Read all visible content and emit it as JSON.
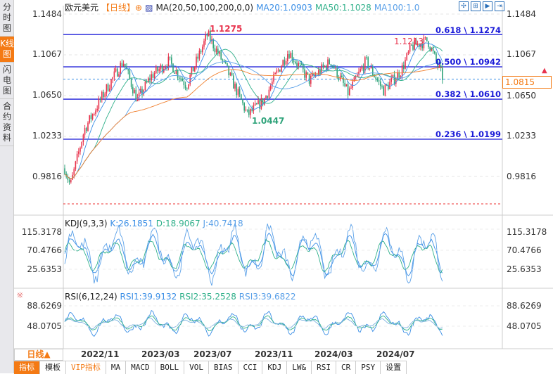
{
  "sidebar": {
    "tabs": [
      {
        "label": "分时图"
      },
      {
        "label": "K线图",
        "active": true
      },
      {
        "label": "闪电图"
      },
      {
        "label": "合约资料"
      }
    ]
  },
  "header": {
    "symbol": "欧元美元",
    "period": "【日线】",
    "ma_label": "MA(20,50,100,200,0,0)",
    "ma20": "MA20:1.0903",
    "ma50": "MA50:1.1028",
    "ma100": "MA100:1.0"
  },
  "toolbar": {
    "icons": [
      "crosshair-icon",
      "zoom-range-icon",
      "play-forward-icon",
      "exit-right-icon"
    ]
  },
  "price_axis": {
    "right": [
      "1.1484",
      "1.1067",
      "1.0650",
      "1.0233",
      "0.9816"
    ],
    "left": [
      "1.1484",
      "1.1067",
      "1.0650",
      "1.0233",
      "0.9816"
    ],
    "current": "1.0815"
  },
  "annotations": {
    "high1": "1.1275",
    "low1": "1.0447",
    "high2": "1.1213"
  },
  "fibonacci": [
    {
      "label": "0.618 \\ 1.1274",
      "level": 1.1274
    },
    {
      "label": "0.500 \\ 1.0942",
      "level": 1.0942
    },
    {
      "label": "0.382 \\ 1.0610",
      "level": 1.061
    },
    {
      "label": "0.236 \\ 1.0199",
      "level": 1.0199
    }
  ],
  "kdj": {
    "title": "KDJ(9,3,3)",
    "k": "K:26.1851",
    "d": "D:18.9067",
    "j": "J:40.7418",
    "ticks": [
      "115.3178",
      "70.4766",
      "25.6353"
    ]
  },
  "rsi": {
    "title": "RSI(6,12,24)",
    "rsi1": "RSI1:39.9132",
    "rsi2": "RSI2:35.2528",
    "rsi3": "RSI3:39.6822",
    "ticks": [
      "88.6269",
      "48.0705"
    ]
  },
  "xaxis": {
    "period_button": "日线▲",
    "ticks": [
      "2022/11",
      "2023/03",
      "2023/07",
      "2023/11",
      "2024/03",
      "2024/07"
    ]
  },
  "bottom_tabs": [
    "指标",
    "模板",
    "VIP指标",
    "MA",
    "MACD",
    "BOLL",
    "VOL",
    "BIAS",
    "CCI",
    "KDJ",
    "LW&",
    "RSI",
    "CR",
    "PSY",
    "设置"
  ],
  "colors": {
    "up": "#e8334d",
    "down": "#2fa37a",
    "fib": "#1a1ad8",
    "accent": "#f47a14",
    "ma20": "#3a8ee6",
    "ma50": "#30b08a",
    "ma100": "#5aa0e8",
    "ma200": "#f08030"
  }
}
